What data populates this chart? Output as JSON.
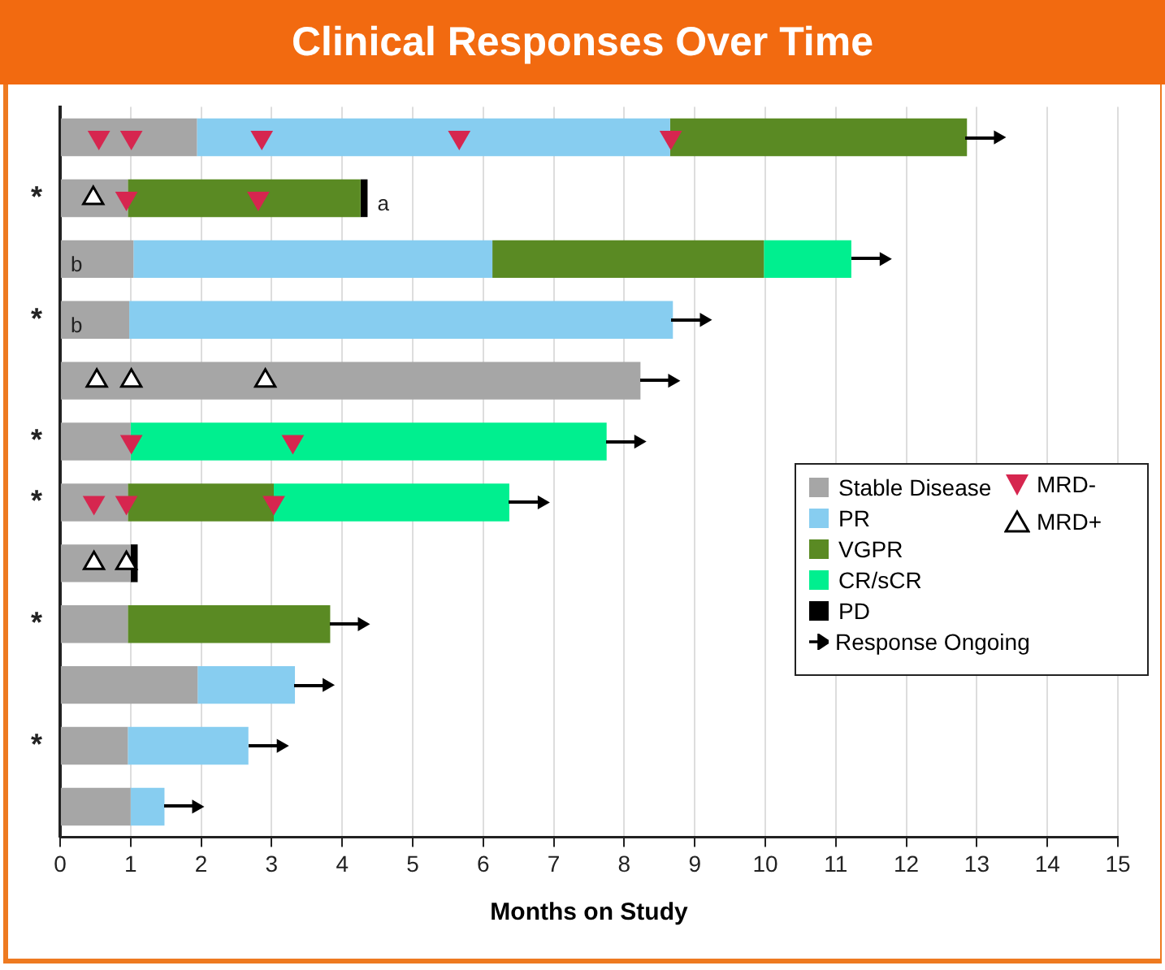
{
  "chart_data": {
    "type": "bar",
    "orientation": "horizontal",
    "stacked": true,
    "title": "Clinical Responses Over Time",
    "xlabel": "Months on Study",
    "categories": [
      null,
      "*",
      null,
      "*",
      null,
      "*",
      "*",
      null,
      "*",
      null,
      "*",
      null
    ],
    "xlim": [
      0,
      15
    ],
    "xticks": [
      0,
      1,
      2,
      3,
      4,
      5,
      6,
      7,
      8,
      9,
      10,
      11,
      12,
      13,
      14,
      15
    ],
    "grid": "x",
    "legend": "right",
    "series": [
      {
        "name": "Stable Disease",
        "color": "#a6a6a6",
        "values": [
          1.94,
          0.96,
          1.04,
          0.98,
          8.23,
          1.0,
          0.96,
          1.0,
          0.96,
          1.95,
          0.96,
          1.0
        ],
        "value_labels": [
          null,
          null,
          "b",
          "b",
          null,
          null,
          null,
          null,
          null,
          null,
          null,
          null
        ]
      },
      {
        "name": "PR",
        "color": "#87cdf0",
        "values": [
          6.71,
          null,
          5.09,
          7.71,
          null,
          null,
          null,
          null,
          null,
          1.38,
          1.71,
          0.48
        ]
      },
      {
        "name": "VGPR",
        "color": "#5a8a23",
        "values": [
          4.21,
          3.3,
          3.85,
          null,
          null,
          null,
          2.07,
          null,
          2.87,
          null,
          null,
          null
        ]
      },
      {
        "name": "CR/sCR",
        "color": "#00ef8f",
        "values": [
          null,
          null,
          1.24,
          null,
          null,
          6.75,
          3.34,
          null,
          null,
          null,
          null,
          null
        ]
      },
      {
        "name": "PD",
        "color": "#000000",
        "values": [
          null,
          0.1,
          null,
          null,
          null,
          null,
          null,
          0.1,
          null,
          null,
          null,
          null
        ],
        "value_labels": [
          null,
          "a",
          null,
          null,
          null,
          null,
          null,
          null,
          null,
          null,
          null,
          null
        ]
      },
      {
        "name": "MRD-",
        "type": "scatter",
        "marker": "triangle_down",
        "color": "#d6264f",
        "values": [
          0.55,
          0.94,
          null,
          null,
          null,
          1.01,
          0.48,
          null,
          null,
          null,
          null,
          null
        ]
      },
      {
        "type": "scatter",
        "marker": "triangle_down",
        "color": "#d6264f",
        "values": [
          1.01,
          2.81,
          null,
          null,
          null,
          3.3,
          0.94,
          null,
          null,
          null,
          null,
          null
        ]
      },
      {
        "type": "scatter",
        "marker": "triangle_down",
        "color": "#d6264f",
        "values": [
          2.86,
          null,
          null,
          null,
          null,
          null,
          3.03,
          null,
          null,
          null,
          null,
          null
        ]
      },
      {
        "type": "scatter",
        "marker": "triangle_down",
        "color": "#d6264f",
        "values": [
          5.66,
          null,
          null,
          null,
          null,
          null,
          null,
          null,
          null,
          null,
          null,
          null
        ]
      },
      {
        "type": "scatter",
        "marker": "triangle_down",
        "color": "#d6264f",
        "values": [
          8.66,
          null,
          null,
          null,
          null,
          null,
          null,
          null,
          null,
          null,
          null,
          null
        ]
      },
      {
        "name": "MRD+",
        "type": "scatter",
        "marker": "triangle",
        "color": "#ffffff",
        "values": [
          null,
          0.47,
          null,
          null,
          0.52,
          null,
          null,
          0.48,
          null,
          null,
          null,
          null
        ]
      },
      {
        "type": "scatter",
        "marker": "triangle",
        "color": "#ffffff",
        "values": [
          null,
          null,
          null,
          null,
          1.01,
          null,
          null,
          0.94,
          null,
          null,
          null,
          null
        ]
      },
      {
        "type": "scatter",
        "marker": "triangle",
        "color": "#ffffff",
        "values": [
          null,
          null,
          null,
          null,
          2.91,
          null,
          null,
          null,
          null,
          null,
          null,
          null
        ]
      },
      {
        "name": "Response Ongoing",
        "type": "scatter",
        "marker": "triangle",
        "line_style": "solid",
        "color": "#000000",
        "values": [
          13.3,
          null,
          11.68,
          9.13,
          8.68,
          8.2,
          6.83,
          null,
          4.28,
          3.78,
          3.13,
          1.93
        ]
      }
    ]
  }
}
